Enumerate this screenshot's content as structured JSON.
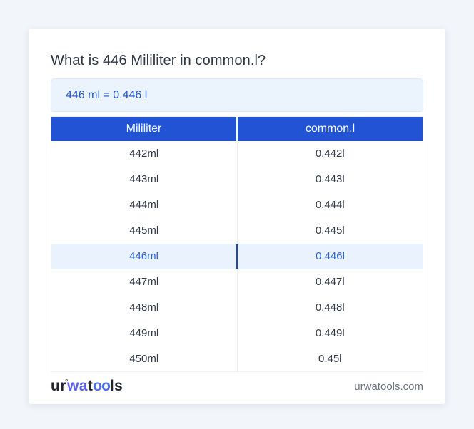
{
  "page": {
    "title": "What is 446 Mililiter in common.l?",
    "equation": "446 ml = 0.446 l"
  },
  "table": {
    "headers": [
      "Mililiter",
      "common.l"
    ],
    "rows": [
      [
        "442ml",
        "0.442l"
      ],
      [
        "443ml",
        "0.443l"
      ],
      [
        "444ml",
        "0.444l"
      ],
      [
        "445ml",
        "0.445l"
      ],
      [
        "446ml",
        "0.446l"
      ],
      [
        "447ml",
        "0.447l"
      ],
      [
        "448ml",
        "0.448l"
      ],
      [
        "449ml",
        "0.449l"
      ],
      [
        "450ml",
        "0.45l"
      ]
    ],
    "highlight_index": 4
  },
  "footer": {
    "logo": {
      "p1": "ur",
      "deg": "°",
      "p2": "wa",
      "p3": "t",
      "p4": "oo",
      "p5": "ls"
    },
    "site": "urwatools.com"
  },
  "colors": {
    "page_background": "#f2f5fa",
    "card_background": "#ffffff",
    "header_blue": "#2153d4",
    "highlight_row_background": "#e9f2fd",
    "highlight_text": "#2f62cf",
    "highlight_divider": "#1d4e9e",
    "equation_box_background": "#ebf4fd",
    "equation_text": "#2355c8",
    "body_text": "#323a48",
    "footer_text": "#6e7480",
    "logo_blue_1": "#5a60f0",
    "logo_blue_2": "#4d6cf3",
    "logo_dark": "#20242e"
  }
}
